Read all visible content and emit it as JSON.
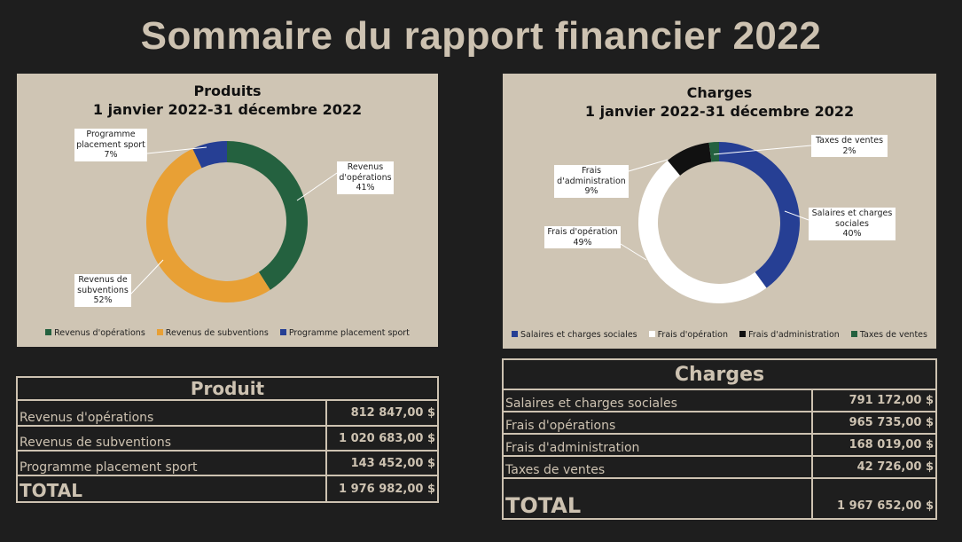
{
  "page": {
    "title": "Sommaire du rapport financier 2022"
  },
  "produits_chart": {
    "title_line1": "Produits",
    "title_line2": "1 janvier 2022-31 décembre 2022",
    "callouts": [
      {
        "label": "Revenus d'opérations",
        "pct": "41%"
      },
      {
        "label": "Revenus de subventions",
        "pct": "52%"
      },
      {
        "label": "Programme placement sport",
        "pct": "7%"
      }
    ],
    "legend": [
      "Revenus  d'opérations",
      "Revenus de subventions",
      "Programme placement sport"
    ]
  },
  "charges_chart": {
    "title_line1": "Charges",
    "title_line2": "1 janvier 2022-31 décembre 2022",
    "callouts": [
      {
        "label": "Salaires et charges sociales",
        "pct": "40%"
      },
      {
        "label": "Frais d'opération",
        "pct": "49%"
      },
      {
        "label": "Frais d'administration",
        "pct": "9%"
      },
      {
        "label": "Taxes de ventes",
        "pct": "2%"
      }
    ],
    "legend": [
      "Salaires et charges sociales",
      "Frais d'opération",
      "Frais d'administration",
      "Taxes de ventes"
    ]
  },
  "chart_data": [
    {
      "type": "pie",
      "variant": "doughnut",
      "title": "Produits 1 janvier 2022-31 décembre 2022",
      "categories": [
        "Revenus d'opérations",
        "Revenus de subventions",
        "Programme placement sport"
      ],
      "values": [
        41,
        52,
        7
      ],
      "colors": [
        "#24613f",
        "#e8a035",
        "#263f94"
      ],
      "legend": "bottom"
    },
    {
      "type": "pie",
      "variant": "doughnut",
      "title": "Charges 1 janvier 2022-31 décembre 2022",
      "categories": [
        "Salaires et charges sociales",
        "Frais d'opération",
        "Frais d'administration",
        "Taxes de ventes"
      ],
      "values": [
        40,
        49,
        9,
        2
      ],
      "colors": [
        "#263f94",
        "#ffffff",
        "#111111",
        "#24613f"
      ],
      "legend": "bottom"
    }
  ],
  "produit_table": {
    "header": "Produit",
    "rows": [
      {
        "label": "Revenus  d'opérations",
        "value": "812 847,00  $"
      },
      {
        "label": "Revenus de subventions",
        "value": "1 020 683,00  $"
      },
      {
        "label": "Programme placement sport",
        "value": "143 452,00  $"
      }
    ],
    "total_label": "TOTAL",
    "total_value": "1 976 982,00  $"
  },
  "charges_table": {
    "header": "Charges",
    "rows": [
      {
        "label": "Salaires et charges sociales",
        "value": "791 172,00  $"
      },
      {
        "label": "Frais d'opérations",
        "value": "965 735,00  $"
      },
      {
        "label": "Frais d'administration",
        "value": "168 019,00  $"
      },
      {
        "label": "Taxes de ventes",
        "value": "42 726,00  $"
      }
    ],
    "total_label": "TOTAL",
    "total_value": "1 967 652,00  $"
  }
}
